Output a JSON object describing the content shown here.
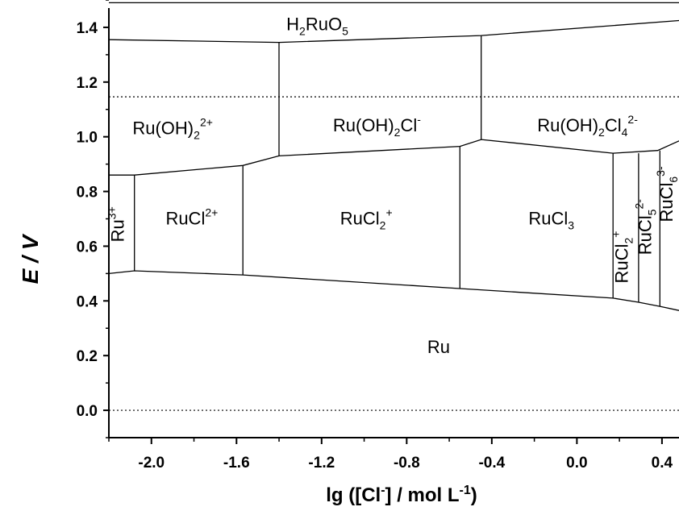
{
  "chart_data": {
    "type": "area",
    "xlabel": {
      "main": "lg ([Cl",
      "sup1": "-",
      "mid": "] / mol L",
      "sup2": "-1",
      "end": ")"
    },
    "ylabel": "E / V",
    "xlim": [
      -2.2,
      0.48
    ],
    "ylim": [
      -0.1,
      1.5
    ],
    "x_ticks": [
      "-2.0",
      "-1.6",
      "-1.2",
      "-0.8",
      "-0.4",
      "0.0",
      "0.4"
    ],
    "x_tick_values": [
      -2.0,
      -1.6,
      -1.2,
      -0.8,
      -0.4,
      0.0,
      0.4
    ],
    "y_ticks": [
      "0.0",
      "0.2",
      "0.4",
      "0.6",
      "0.8",
      "1.0",
      "1.2",
      "1.4"
    ],
    "y_tick_values": [
      0.0,
      0.2,
      0.4,
      0.6,
      0.8,
      1.0,
      1.2,
      1.4
    ],
    "dotted_lines": [
      0.0,
      1.146
    ],
    "boundaries": [
      {
        "name": "top-frame",
        "points": [
          [
            -2.2,
            1.49
          ],
          [
            0.48,
            1.49
          ]
        ]
      },
      {
        "name": "H2RuO5-lower",
        "points": [
          [
            -2.2,
            1.355
          ],
          [
            -1.4,
            1.345
          ],
          [
            -0.45,
            1.37
          ],
          [
            0.48,
            1.425
          ]
        ]
      },
      {
        "name": "RuOH-upper",
        "points": [
          [
            -2.2,
            0.86
          ],
          [
            -2.08,
            0.86
          ],
          [
            -1.57,
            0.895
          ],
          [
            -1.4,
            0.93
          ],
          [
            -0.55,
            0.965
          ],
          [
            -0.45,
            0.99
          ],
          [
            0.17,
            0.94
          ],
          [
            0.38,
            0.95
          ],
          [
            0.48,
            0.985
          ]
        ]
      },
      {
        "name": "Ru-upper",
        "points": [
          [
            -2.2,
            0.5
          ],
          [
            -2.08,
            0.51
          ],
          [
            -1.57,
            0.495
          ],
          [
            -0.55,
            0.445
          ],
          [
            0.17,
            0.41
          ],
          [
            0.29,
            0.395
          ],
          [
            0.39,
            0.38
          ],
          [
            0.48,
            0.365
          ]
        ]
      },
      {
        "name": "v1",
        "points": [
          [
            -1.4,
            1.345
          ],
          [
            -1.4,
            0.93
          ]
        ]
      },
      {
        "name": "v2",
        "points": [
          [
            -0.45,
            1.37
          ],
          [
            -0.45,
            0.99
          ]
        ]
      },
      {
        "name": "v3",
        "points": [
          [
            -2.08,
            0.86
          ],
          [
            -2.08,
            0.51
          ]
        ]
      },
      {
        "name": "v4",
        "points": [
          [
            -1.57,
            0.895
          ],
          [
            -1.57,
            0.495
          ]
        ]
      },
      {
        "name": "v5",
        "points": [
          [
            -0.55,
            0.965
          ],
          [
            -0.55,
            0.445
          ]
        ]
      },
      {
        "name": "v6",
        "points": [
          [
            0.17,
            0.94
          ],
          [
            0.17,
            0.41
          ]
        ]
      },
      {
        "name": "v7",
        "points": [
          [
            0.29,
            0.94
          ],
          [
            0.29,
            0.395
          ]
        ]
      },
      {
        "name": "v8",
        "points": [
          [
            0.39,
            0.95
          ],
          [
            0.39,
            0.38
          ]
        ]
      }
    ],
    "species": [
      {
        "base": "H",
        "sub1": "2",
        "mid": "RuO",
        "sub2": "5",
        "sup": "",
        "x": -1.22,
        "y": 1.39,
        "rotate": 0
      },
      {
        "base": "Ru(OH)",
        "sub1": "2",
        "mid": "",
        "sub2": "",
        "sup": "2+",
        "x": -1.9,
        "y": 1.01,
        "rotate": 0
      },
      {
        "base": "Ru(OH)",
        "sub1": "2",
        "mid": "Cl",
        "sub2": "",
        "sup": "-",
        "x": -0.94,
        "y": 1.02,
        "rotate": 0
      },
      {
        "base": "Ru(OH)",
        "sub1": "2",
        "mid": "Cl",
        "sub2": "4",
        "sup": "2-",
        "x": 0.05,
        "y": 1.02,
        "rotate": 0
      },
      {
        "base": "Ru",
        "sub1": "",
        "mid": "",
        "sub2": "",
        "sup": "3+",
        "x": -2.13,
        "y": 0.68,
        "rotate": -90
      },
      {
        "base": "RuCl",
        "sub1": "",
        "mid": "",
        "sub2": "",
        "sup": "2+",
        "x": -1.81,
        "y": 0.68,
        "rotate": 0
      },
      {
        "base": "RuCl",
        "sub1": "2",
        "mid": "",
        "sub2": "",
        "sup": "+",
        "x": -0.99,
        "y": 0.68,
        "rotate": 0
      },
      {
        "base": "RuCl",
        "sub1": "3",
        "mid": "",
        "sub2": "",
        "sup": "",
        "x": -0.12,
        "y": 0.68,
        "rotate": 0
      },
      {
        "base": "RuCl",
        "sub1": "2",
        "mid": "",
        "sub2": "",
        "sup": "+",
        "x": 0.24,
        "y": 0.56,
        "rotate": -90
      },
      {
        "base": "RuCl",
        "sub1": "5",
        "mid": "",
        "sub2": "",
        "sup": "2-",
        "x": 0.35,
        "y": 0.67,
        "rotate": -90
      },
      {
        "base": "RuCl",
        "sub1": "6",
        "mid": "",
        "sub2": "",
        "sup": "3-",
        "x": 0.45,
        "y": 0.79,
        "rotate": -90
      },
      {
        "base": "Ru",
        "sub1": "",
        "mid": "",
        "sub2": "",
        "sup": "",
        "x": -0.65,
        "y": 0.21,
        "rotate": 0
      }
    ]
  }
}
